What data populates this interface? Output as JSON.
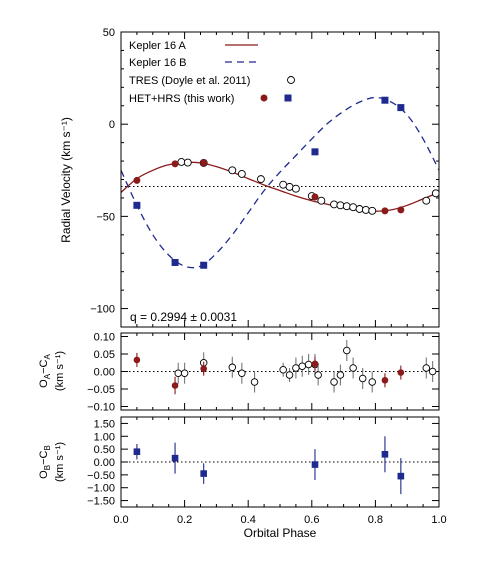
{
  "chart_data": [
    {
      "type": "line",
      "panel": "main",
      "xlabel": "",
      "ylabel": "Radial Velocity (km s⁻¹)",
      "xlim": [
        0.0,
        1.0
      ],
      "ylim": [
        -110,
        50
      ],
      "yticks": [
        -100,
        -50,
        0,
        50
      ],
      "ytick_labels": [
        "−100",
        "−50",
        "0",
        "50"
      ],
      "systemic_velocity": -33.8,
      "annotation": "q = 0.2994 ± 0.0031",
      "legend": {
        "placement": "top-left",
        "entries": [
          {
            "label": "Kepler 16 A",
            "style": "solid",
            "color": "#8b1a1a"
          },
          {
            "label": "Kepler 16 B",
            "style": "dashed",
            "color": "#1f2a8f"
          },
          {
            "label": "TRES (Doyle et al. 2011)",
            "style": "open-circle",
            "color": "#000000"
          },
          {
            "label": "HET+HRS (this work)",
            "style": "filled-circle-and-square",
            "color": "#8b1a1a",
            "color2": "#1f2a8f"
          }
        ]
      },
      "model_curves": [
        {
          "name": "Kepler 16 A",
          "x": [
            0.0,
            0.05,
            0.1,
            0.15,
            0.2,
            0.25,
            0.3,
            0.35,
            0.4,
            0.45,
            0.5,
            0.55,
            0.6,
            0.65,
            0.7,
            0.75,
            0.8,
            0.85,
            0.9,
            0.95,
            1.0
          ],
          "y": [
            -37,
            -29.5,
            -25,
            -22,
            -20.8,
            -21,
            -23,
            -26,
            -29.5,
            -33,
            -36,
            -39,
            -41.5,
            -43.5,
            -45.3,
            -46.7,
            -47.2,
            -46.5,
            -44,
            -40.5,
            -37
          ]
        },
        {
          "name": "Kepler 16 B",
          "x": [
            0.0,
            0.05,
            0.1,
            0.15,
            0.2,
            0.25,
            0.3,
            0.35,
            0.4,
            0.45,
            0.5,
            0.55,
            0.6,
            0.65,
            0.7,
            0.75,
            0.8,
            0.85,
            0.9,
            0.95,
            1.0
          ],
          "y": [
            -25,
            -44,
            -60,
            -71,
            -77,
            -77,
            -70,
            -60,
            -48,
            -36,
            -26,
            -17,
            -8,
            0.5,
            7,
            12,
            14.5,
            12,
            5,
            -8,
            -25
          ]
        }
      ],
      "tres_A": {
        "x": [
          0.19,
          0.21,
          0.26,
          0.35,
          0.38,
          0.44,
          0.51,
          0.53,
          0.55,
          0.6,
          0.63,
          0.67,
          0.69,
          0.71,
          0.73,
          0.75,
          0.77,
          0.79,
          0.96,
          0.99
        ],
        "y": [
          -20.5,
          -20.8,
          -21,
          -25,
          -27,
          -29.8,
          -32.8,
          -34,
          -35,
          -39,
          -41.5,
          -43.5,
          -44,
          -44.5,
          -45,
          -46,
          -46.5,
          -47,
          -41.5,
          -37.5
        ]
      },
      "het_A": {
        "x": [
          0.05,
          0.17,
          0.26,
          0.61,
          0.83,
          0.88
        ],
        "y": [
          -30.5,
          -21.5,
          -21,
          -39.5,
          -47,
          -46.5
        ]
      },
      "het_B": {
        "x": [
          0.05,
          0.17,
          0.26,
          0.61,
          0.83,
          0.88
        ],
        "y": [
          -44,
          -75,
          -76.5,
          -15,
          13,
          9
        ]
      }
    },
    {
      "type": "scatter",
      "panel": "residual_A",
      "ylabel": "Oₐ−Cₐ",
      "ylabel_main": "O",
      "ylabel_sub": "A",
      "ylabel_mid": "−C",
      "ylabel_sub2": "A",
      "ylabel_units": "(km s⁻¹)",
      "ylim": [
        -0.11,
        0.11
      ],
      "yticks": [
        -0.1,
        -0.05,
        0.0,
        0.05,
        0.1
      ],
      "ytick_labels": [
        "−0.10",
        "−0.05",
        "0.00",
        "0.05",
        "0.10"
      ],
      "tres": {
        "x": [
          0.18,
          0.2,
          0.26,
          0.35,
          0.38,
          0.42,
          0.51,
          0.53,
          0.55,
          0.57,
          0.59,
          0.61,
          0.62,
          0.67,
          0.69,
          0.71,
          0.73,
          0.76,
          0.79,
          0.96,
          0.98
        ],
        "y": [
          -0.005,
          -0.005,
          0.025,
          0.012,
          -0.005,
          -0.03,
          0.005,
          -0.01,
          0.01,
          0.015,
          0.02,
          0.02,
          -0.01,
          -0.03,
          -0.01,
          0.06,
          0.01,
          -0.02,
          -0.03,
          0.01,
          0.0
        ],
        "err": [
          0.03,
          0.03,
          0.03,
          0.03,
          0.03,
          0.03,
          0.02,
          0.02,
          0.03,
          0.03,
          0.03,
          0.03,
          0.03,
          0.03,
          0.03,
          0.03,
          0.03,
          0.03,
          0.03,
          0.03,
          0.03
        ]
      },
      "het": {
        "x": [
          0.05,
          0.17,
          0.26,
          0.61,
          0.83,
          0.88
        ],
        "y": [
          0.033,
          -0.04,
          0.008,
          0.022,
          -0.025,
          -0.003
        ],
        "err": [
          0.02,
          0.025,
          0.02,
          0.02,
          0.02,
          0.02
        ]
      }
    },
    {
      "type": "scatter",
      "panel": "residual_B",
      "ylabel_main": "O",
      "ylabel_sub": "B",
      "ylabel_mid": "−C",
      "ylabel_sub2": "B",
      "ylabel_units": "(km s⁻¹)",
      "xlabel": "Orbital Phase",
      "xlim": [
        0.0,
        1.0
      ],
      "xticks": [
        0.0,
        0.2,
        0.4,
        0.6,
        0.8,
        1.0
      ],
      "xtick_labels": [
        "0.0",
        "0.2",
        "0.4",
        "0.6",
        "0.8",
        "1.0"
      ],
      "ylim": [
        -1.75,
        1.75
      ],
      "yticks": [
        -1.5,
        -1.0,
        -0.5,
        0.0,
        0.5,
        1.0,
        1.5
      ],
      "ytick_labels": [
        "−1.50",
        "−1.00",
        "−0.50",
        "0.00",
        "0.50",
        "1.00",
        "1.50"
      ],
      "het": {
        "x": [
          0.05,
          0.17,
          0.26,
          0.61,
          0.83,
          0.88
        ],
        "y": [
          0.4,
          0.15,
          -0.45,
          -0.1,
          0.3,
          -0.55
        ],
        "err": [
          0.3,
          0.6,
          0.4,
          0.6,
          0.7,
          0.7
        ]
      }
    }
  ]
}
